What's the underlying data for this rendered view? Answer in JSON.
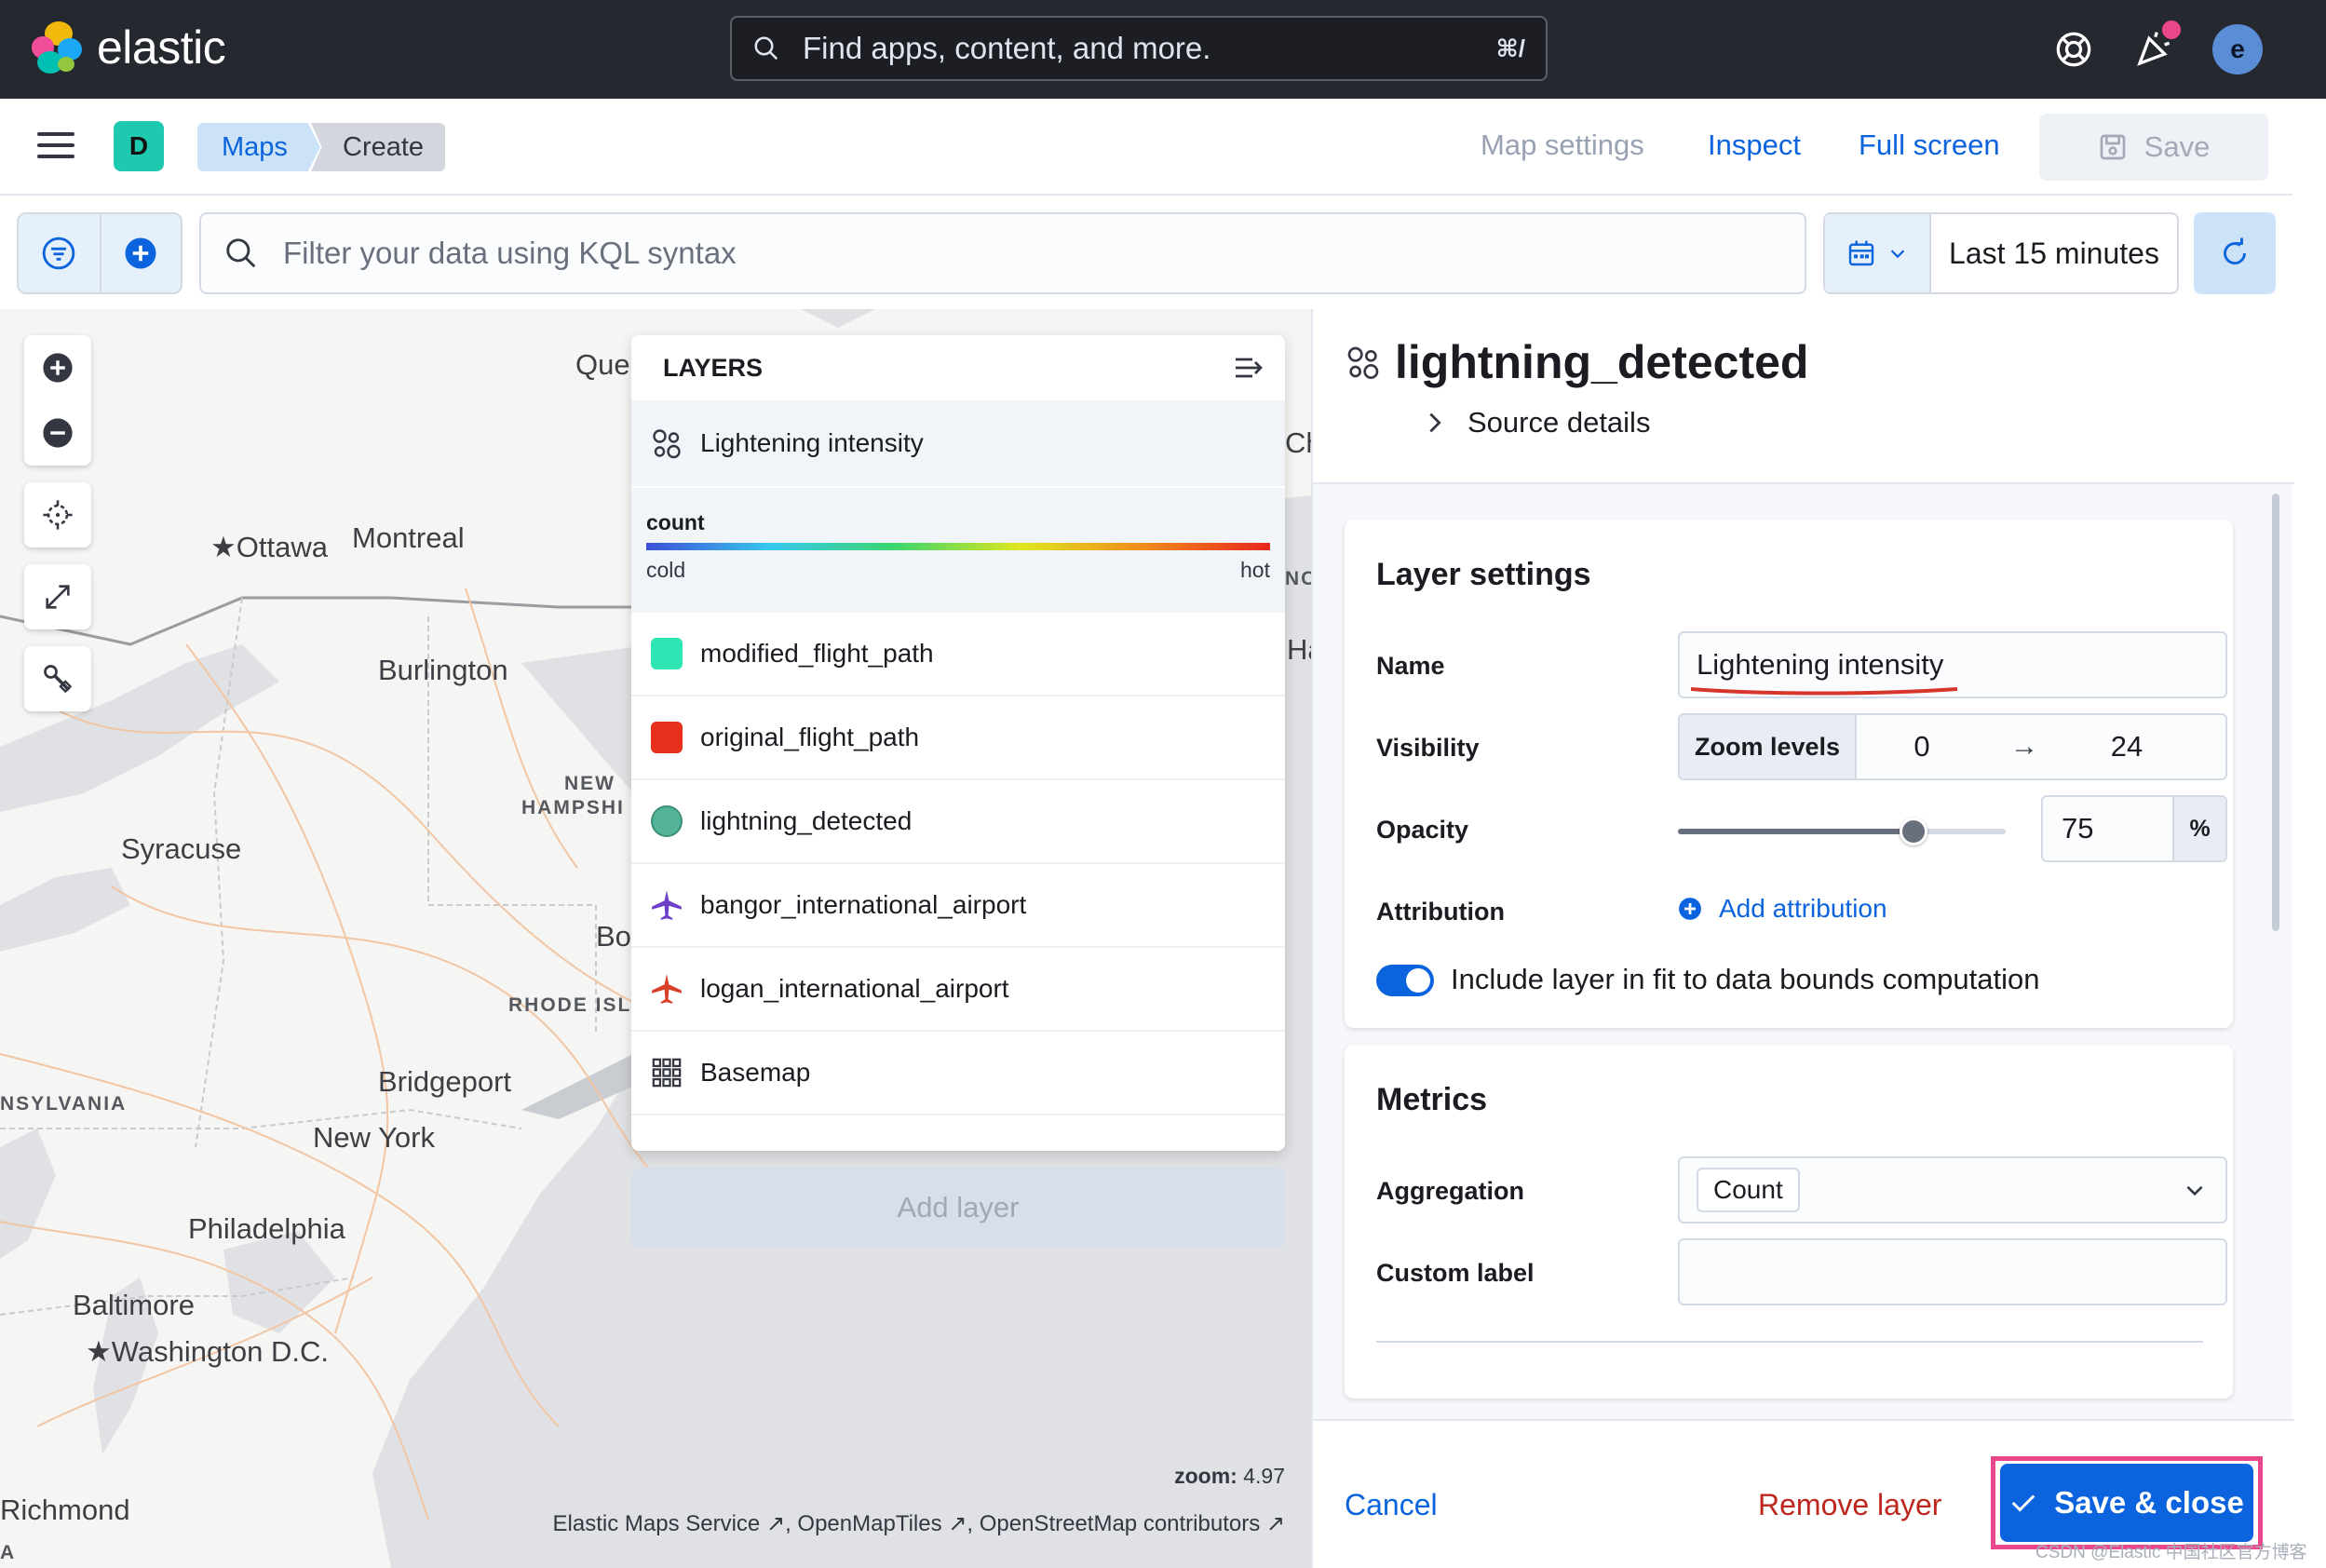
{
  "header": {
    "brand": "elastic",
    "search_placeholder": "Find apps, content, and more.",
    "search_shortcut": "⌘/",
    "user_initial": "e",
    "brand_colors": [
      "#f0b90b",
      "#1ba9f5",
      "#f04e98",
      "#00bfb3",
      "#93c83e"
    ]
  },
  "subheader": {
    "space_initial": "D",
    "breadcrumbs": [
      "Maps",
      "Create"
    ],
    "map_settings": "Map settings",
    "inspect": "Inspect",
    "full_screen": "Full screen",
    "save": "Save"
  },
  "query": {
    "placeholder": "Filter your data using KQL syntax",
    "time_range": "Last 15 minutes"
  },
  "map": {
    "cities": [
      "Que",
      "Ottawa",
      "Montreal",
      "Burlington",
      "Syracuse",
      "Bo",
      "Bridgeport",
      "New York",
      "Philadelphia",
      "Baltimore",
      "Washington D.C.",
      "Richmond",
      "Cha",
      "Ha"
    ],
    "regions": [
      "NEW",
      "HAMPSHI",
      "RHODE ISL",
      "NSYLVANIA",
      "NC",
      "A"
    ],
    "zoom_label": "zoom:",
    "zoom_value": "4.97",
    "attribution": [
      "Elastic Maps Service",
      "OpenMapTiles",
      "OpenStreetMap contributors"
    ]
  },
  "layers_panel": {
    "title": "LAYERS",
    "selected_layer": "Lightening intensity",
    "legend": {
      "title": "count",
      "low": "cold",
      "high": "hot"
    },
    "items": [
      {
        "name": "modified_flight_path",
        "color": "#2ee6b4",
        "icon": "square-swatch"
      },
      {
        "name": "original_flight_path",
        "color": "#e7301c",
        "icon": "square-swatch"
      },
      {
        "name": "lightning_detected",
        "color": "#54b399",
        "icon": "circle-swatch"
      },
      {
        "name": "bangor_international_airport",
        "color": "#6c3fc8",
        "icon": "plane-icon"
      },
      {
        "name": "logan_international_airport",
        "color": "#d6402b",
        "icon": "plane-icon"
      },
      {
        "name": "Basemap",
        "color": "#343741",
        "icon": "grid-icon"
      }
    ],
    "add_layer": "Add layer"
  },
  "details": {
    "title": "lightning_detected",
    "source_details": "Source details",
    "layer_settings": {
      "heading": "Layer settings",
      "name_label": "Name",
      "name_value": "Lightening intensity",
      "visibility_label": "Visibility",
      "zoom_levels": "Zoom levels",
      "zoom_min": "0",
      "zoom_max": "24",
      "opacity_label": "Opacity",
      "opacity_value": "75",
      "opacity_unit": "%",
      "attribution_label": "Attribution",
      "add_attribution": "Add attribution",
      "fit_bounds": "Include layer in fit to data bounds computation"
    },
    "metrics": {
      "heading": "Metrics",
      "aggregation_label": "Aggregation",
      "aggregation_value": "Count",
      "custom_label": "Custom label",
      "custom_value": ""
    },
    "footer": {
      "cancel": "Cancel",
      "remove": "Remove layer",
      "save_close": "Save & close"
    }
  },
  "watermark": "CSDN @Elastic 中国社区官方博客"
}
